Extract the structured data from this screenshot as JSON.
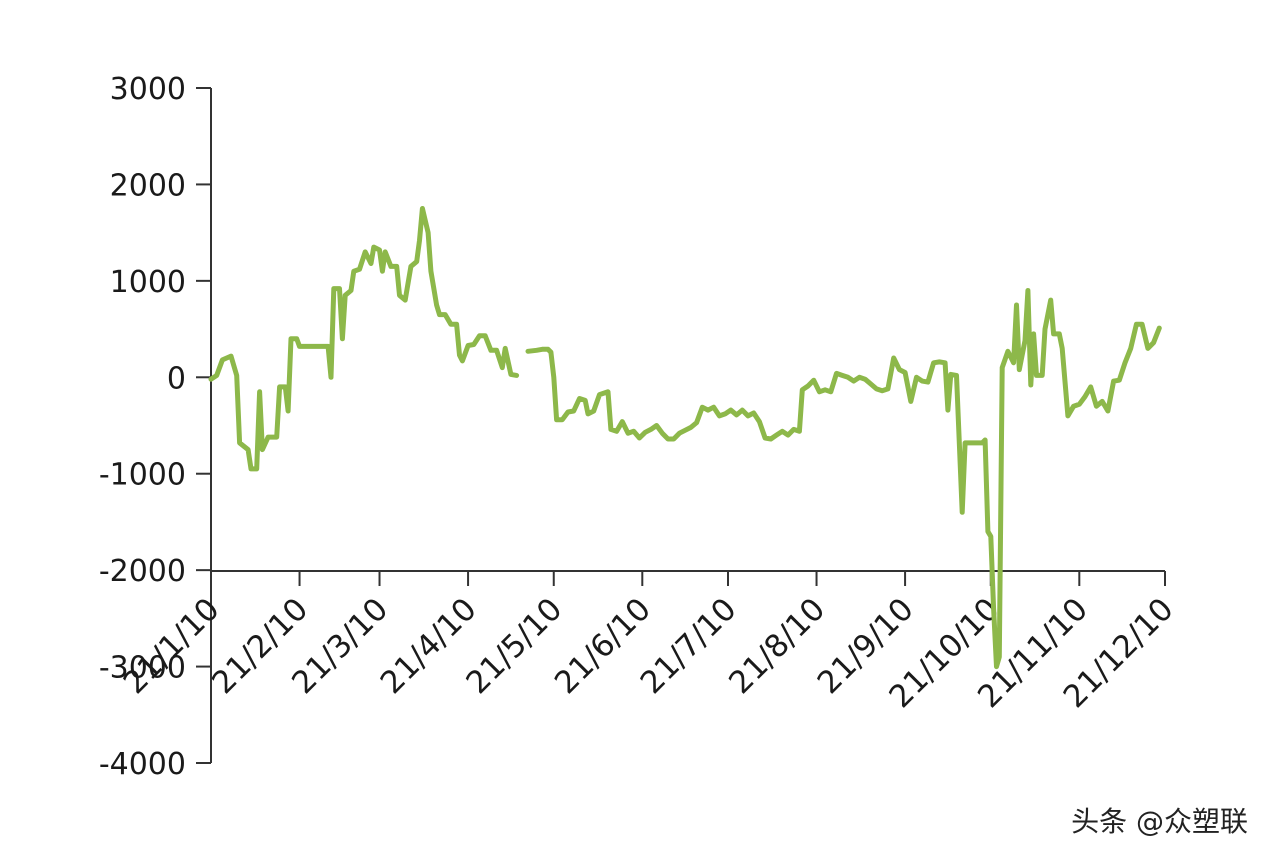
{
  "watermark": "头条 @众塑联",
  "chart_data": {
    "type": "line",
    "title": "",
    "xlabel": "",
    "ylabel": "",
    "ylim": [
      -4000,
      3000
    ],
    "y_ticks": [
      "3000",
      "2000",
      "1000",
      "0",
      "-1000",
      "-2000",
      "-3000",
      "-4000"
    ],
    "x_ticks": [
      "21/1/10",
      "21/2/10",
      "21/3/10",
      "21/4/10",
      "21/5/10",
      "21/6/10",
      "21/7/10",
      "21/8/10",
      "21/9/10",
      "21/10/10",
      "21/11/10",
      "21/12/10"
    ],
    "grid": false,
    "legend": "none",
    "line_color": "#8db84a",
    "series": [
      {
        "values": [
          [
            "2021-01-10",
            -20
          ],
          [
            "2021-01-12",
            20
          ],
          [
            "2021-01-14",
            180
          ],
          [
            "2021-01-17",
            220
          ],
          [
            "2021-01-19",
            20
          ],
          [
            "2021-01-20",
            -680
          ],
          [
            "2021-01-23",
            -750
          ],
          [
            "2021-01-24",
            -950
          ],
          [
            "2021-01-26",
            -950
          ],
          [
            "2021-01-27",
            -150
          ],
          [
            "2021-01-28",
            -750
          ],
          [
            "2021-01-30",
            -620
          ],
          [
            "2021-02-02",
            -620
          ],
          [
            "2021-02-03",
            -100
          ],
          [
            "2021-02-05",
            -100
          ],
          [
            "2021-02-06",
            -350
          ],
          [
            "2021-02-07",
            400
          ],
          [
            "2021-02-09",
            400
          ],
          [
            "2021-02-10",
            320
          ],
          [
            "2021-02-14",
            320
          ],
          [
            "2021-02-18",
            320
          ],
          [
            "2021-02-20",
            320
          ],
          [
            "2021-02-21",
            0
          ],
          [
            "2021-02-22",
            920
          ],
          [
            "2021-02-24",
            920
          ],
          [
            "2021-02-25",
            400
          ],
          [
            "2021-02-26",
            850
          ],
          [
            "2021-02-28",
            900
          ],
          [
            "2021-03-01",
            1100
          ],
          [
            "2021-03-03",
            1120
          ],
          [
            "2021-03-05",
            1300
          ],
          [
            "2021-03-07",
            1180
          ],
          [
            "2021-03-08",
            1350
          ],
          [
            "2021-03-10",
            1320
          ],
          [
            "2021-03-11",
            1100
          ],
          [
            "2021-03-12",
            1300
          ],
          [
            "2021-03-14",
            1150
          ],
          [
            "2021-03-16",
            1150
          ],
          [
            "2021-03-17",
            850
          ],
          [
            "2021-03-19",
            800
          ],
          [
            "2021-03-21",
            1150
          ],
          [
            "2021-03-23",
            1200
          ],
          [
            "2021-03-24",
            1420
          ],
          [
            "2021-03-25",
            1750
          ],
          [
            "2021-03-27",
            1500
          ],
          [
            "2021-03-28",
            1100
          ],
          [
            "2021-03-30",
            750
          ],
          [
            "2021-03-31",
            650
          ],
          [
            "2021-04-02",
            650
          ],
          [
            "2021-04-04",
            550
          ],
          [
            "2021-04-06",
            550
          ],
          [
            "2021-04-07",
            230
          ],
          [
            "2021-04-08",
            170
          ],
          [
            "2021-04-10",
            330
          ],
          [
            "2021-04-12",
            340
          ],
          [
            "2021-04-14",
            430
          ],
          [
            "2021-04-16",
            430
          ],
          [
            "2021-04-18",
            280
          ],
          [
            "2021-04-20",
            280
          ],
          [
            "2021-04-22",
            100
          ],
          [
            "2021-04-23",
            300
          ],
          [
            "2021-04-25",
            30
          ],
          [
            "2021-04-27",
            20
          ]
        ]
      },
      {
        "values": [
          [
            "2021-05-01",
            270
          ],
          [
            "2021-05-04",
            280
          ],
          [
            "2021-05-06",
            290
          ],
          [
            "2021-05-08",
            290
          ],
          [
            "2021-05-09",
            260
          ],
          [
            "2021-05-10",
            0
          ],
          [
            "2021-05-11",
            -440
          ],
          [
            "2021-05-13",
            -440
          ],
          [
            "2021-05-15",
            -360
          ],
          [
            "2021-05-17",
            -350
          ],
          [
            "2021-05-19",
            -220
          ],
          [
            "2021-05-21",
            -240
          ],
          [
            "2021-05-22",
            -380
          ],
          [
            "2021-05-24",
            -350
          ],
          [
            "2021-05-26",
            -180
          ],
          [
            "2021-05-29",
            -150
          ],
          [
            "2021-05-30",
            -540
          ],
          [
            "2021-06-01",
            -560
          ],
          [
            "2021-06-03",
            -460
          ],
          [
            "2021-06-05",
            -580
          ],
          [
            "2021-06-07",
            -560
          ],
          [
            "2021-06-09",
            -630
          ],
          [
            "2021-06-11",
            -570
          ],
          [
            "2021-06-13",
            -540
          ],
          [
            "2021-06-15",
            -500
          ],
          [
            "2021-06-17",
            -580
          ],
          [
            "2021-06-19",
            -640
          ],
          [
            "2021-06-21",
            -640
          ],
          [
            "2021-06-23",
            -580
          ],
          [
            "2021-06-25",
            -550
          ],
          [
            "2021-06-27",
            -520
          ],
          [
            "2021-06-29",
            -470
          ],
          [
            "2021-07-01",
            -310
          ],
          [
            "2021-07-03",
            -340
          ],
          [
            "2021-07-05",
            -310
          ],
          [
            "2021-07-07",
            -400
          ],
          [
            "2021-07-09",
            -380
          ],
          [
            "2021-07-11",
            -340
          ],
          [
            "2021-07-13",
            -390
          ],
          [
            "2021-07-15",
            -340
          ],
          [
            "2021-07-17",
            -400
          ],
          [
            "2021-07-19",
            -370
          ],
          [
            "2021-07-21",
            -460
          ],
          [
            "2021-07-23",
            -630
          ],
          [
            "2021-07-25",
            -640
          ],
          [
            "2021-07-27",
            -600
          ],
          [
            "2021-07-29",
            -560
          ],
          [
            "2021-07-31",
            -600
          ],
          [
            "2021-08-02",
            -540
          ],
          [
            "2021-08-04",
            -560
          ],
          [
            "2021-08-05",
            -130
          ],
          [
            "2021-08-07",
            -90
          ],
          [
            "2021-08-09",
            -30
          ],
          [
            "2021-08-11",
            -150
          ],
          [
            "2021-08-13",
            -130
          ],
          [
            "2021-08-15",
            -150
          ],
          [
            "2021-08-17",
            40
          ],
          [
            "2021-08-19",
            20
          ],
          [
            "2021-08-21",
            0
          ],
          [
            "2021-08-23",
            -40
          ],
          [
            "2021-08-25",
            0
          ],
          [
            "2021-08-27",
            -20
          ],
          [
            "2021-08-29",
            -70
          ],
          [
            "2021-08-31",
            -120
          ],
          [
            "2021-09-02",
            -140
          ],
          [
            "2021-09-04",
            -120
          ],
          [
            "2021-09-06",
            200
          ],
          [
            "2021-09-08",
            80
          ],
          [
            "2021-09-10",
            50
          ],
          [
            "2021-09-12",
            -250
          ],
          [
            "2021-09-14",
            0
          ],
          [
            "2021-09-16",
            -40
          ],
          [
            "2021-09-18",
            -50
          ],
          [
            "2021-09-20",
            150
          ],
          [
            "2021-09-22",
            160
          ],
          [
            "2021-09-24",
            150
          ],
          [
            "2021-09-25",
            -340
          ],
          [
            "2021-09-26",
            30
          ],
          [
            "2021-09-28",
            20
          ],
          [
            "2021-09-30",
            -1400
          ],
          [
            "2021-10-01",
            -680
          ],
          [
            "2021-10-04",
            -680
          ],
          [
            "2021-10-07",
            -680
          ],
          [
            "2021-10-08",
            -650
          ],
          [
            "2021-10-09",
            -1600
          ],
          [
            "2021-10-10",
            -1650
          ],
          [
            "2021-10-11",
            -2400
          ],
          [
            "2021-10-12",
            -3000
          ],
          [
            "2021-10-13",
            -2900
          ],
          [
            "2021-10-14",
            100
          ],
          [
            "2021-10-16",
            270
          ],
          [
            "2021-10-18",
            150
          ],
          [
            "2021-10-19",
            750
          ],
          [
            "2021-10-20",
            80
          ],
          [
            "2021-10-22",
            380
          ],
          [
            "2021-10-23",
            900
          ],
          [
            "2021-10-24",
            -80
          ],
          [
            "2021-10-25",
            450
          ],
          [
            "2021-10-26",
            20
          ],
          [
            "2021-10-28",
            20
          ],
          [
            "2021-10-29",
            500
          ],
          [
            "2021-10-31",
            800
          ],
          [
            "2021-11-01",
            450
          ],
          [
            "2021-11-03",
            450
          ],
          [
            "2021-11-04",
            300
          ],
          [
            "2021-11-06",
            -400
          ],
          [
            "2021-11-08",
            -300
          ],
          [
            "2021-11-10",
            -280
          ],
          [
            "2021-11-12",
            -200
          ],
          [
            "2021-11-14",
            -100
          ],
          [
            "2021-11-16",
            -300
          ],
          [
            "2021-11-18",
            -250
          ],
          [
            "2021-11-20",
            -350
          ],
          [
            "2021-11-22",
            -40
          ],
          [
            "2021-11-24",
            -30
          ],
          [
            "2021-11-26",
            150
          ],
          [
            "2021-11-28",
            300
          ],
          [
            "2021-11-30",
            550
          ],
          [
            "2021-12-02",
            550
          ],
          [
            "2021-12-04",
            300
          ],
          [
            "2021-12-06",
            360
          ],
          [
            "2021-12-08",
            510
          ]
        ]
      }
    ]
  }
}
